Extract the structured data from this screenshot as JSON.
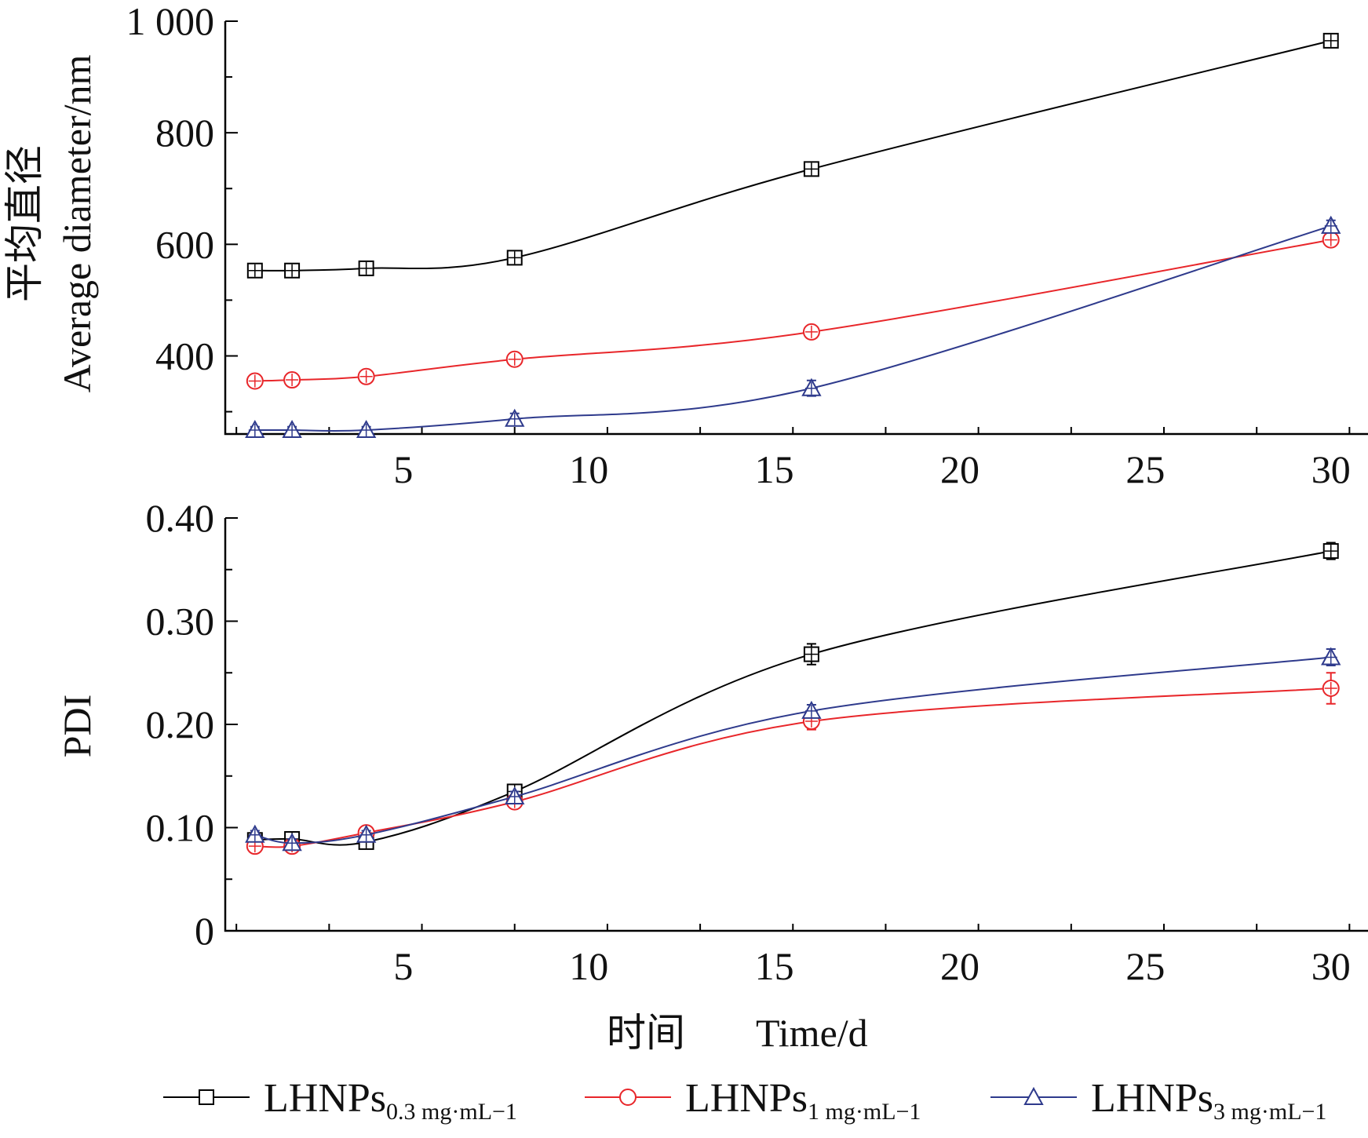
{
  "colors": {
    "black": "#000000",
    "red": "#e8262a",
    "blue": "#2e3a8c"
  },
  "chart_data": [
    {
      "type": "line",
      "ylabel_cn": "平均直径",
      "ylabel_en": "Average diameter/nm",
      "xlim": [
        0.2,
        31
      ],
      "ylim": [
        260,
        1000
      ],
      "xticks": [
        5,
        10,
        15,
        20,
        25,
        30
      ],
      "xtick_labels": [
        "5",
        "10",
        "15",
        "20",
        "25",
        "30"
      ],
      "yticks": [
        400,
        600,
        800,
        1000
      ],
      "ytick_labels": [
        "400",
        "600",
        "800",
        "1 000"
      ],
      "x": [
        1,
        2,
        4,
        8,
        16,
        30
      ],
      "series": [
        {
          "name": "LHNPs0.3 mg·mL−1",
          "color": "#000000",
          "marker": "square",
          "values": [
            553,
            553,
            557,
            576,
            735,
            965
          ],
          "errors": [
            8,
            8,
            8,
            8,
            10,
            12
          ]
        },
        {
          "name": "LHNPs1 mg·mL−1",
          "color": "#e8262a",
          "marker": "circle",
          "values": [
            355,
            357,
            363,
            394,
            443,
            608
          ],
          "errors": [
            8,
            8,
            8,
            8,
            8,
            10
          ]
        },
        {
          "name": "LHNPs3 mg·mL−1",
          "color": "#2e3a8c",
          "marker": "triangle",
          "values": [
            267,
            267,
            267,
            287,
            342,
            633
          ],
          "errors": [
            6,
            6,
            6,
            10,
            14,
            10
          ]
        }
      ]
    },
    {
      "type": "line",
      "ylabel": "PDI",
      "xlabel_cn": "时间",
      "xlabel_en": "Time/d",
      "xlim": [
        0.2,
        31
      ],
      "ylim": [
        0,
        0.4
      ],
      "xticks": [
        5,
        10,
        15,
        20,
        25,
        30
      ],
      "xtick_labels": [
        "5",
        "10",
        "15",
        "20",
        "25",
        "30"
      ],
      "yticks": [
        0,
        0.1,
        0.2,
        0.3,
        0.4
      ],
      "ytick_labels": [
        "0",
        "0.10",
        "0.20",
        "0.30",
        "0.40"
      ],
      "x": [
        1,
        2,
        4,
        8,
        16,
        30
      ],
      "series": [
        {
          "name": "LHNPs0.3 mg·mL−1",
          "color": "#000000",
          "marker": "square",
          "values": [
            0.088,
            0.089,
            0.086,
            0.135,
            0.268,
            0.368
          ],
          "errors": [
            0.004,
            0.004,
            0.004,
            0.005,
            0.01,
            0.008
          ]
        },
        {
          "name": "LHNPs1 mg·mL−1",
          "color": "#e8262a",
          "marker": "circle",
          "values": [
            0.082,
            0.082,
            0.095,
            0.125,
            0.203,
            0.235
          ],
          "errors": [
            0.004,
            0.004,
            0.004,
            0.005,
            0.008,
            0.015
          ]
        },
        {
          "name": "LHNPs3 mg·mL−1",
          "color": "#2e3a8c",
          "marker": "triangle",
          "values": [
            0.093,
            0.085,
            0.093,
            0.13,
            0.213,
            0.265
          ],
          "errors": [
            0.004,
            0.004,
            0.004,
            0.005,
            0.006,
            0.008
          ]
        }
      ]
    }
  ],
  "legend": [
    {
      "main": "LHNPs",
      "sub": "0.3 mg·mL−1",
      "color": "#000000",
      "marker": "square"
    },
    {
      "main": "LHNPs",
      "sub": "1 mg·mL−1",
      "color": "#e8262a",
      "marker": "circle"
    },
    {
      "main": "LHNPs",
      "sub": "3 mg·mL−1",
      "color": "#2e3a8c",
      "marker": "triangle"
    }
  ]
}
